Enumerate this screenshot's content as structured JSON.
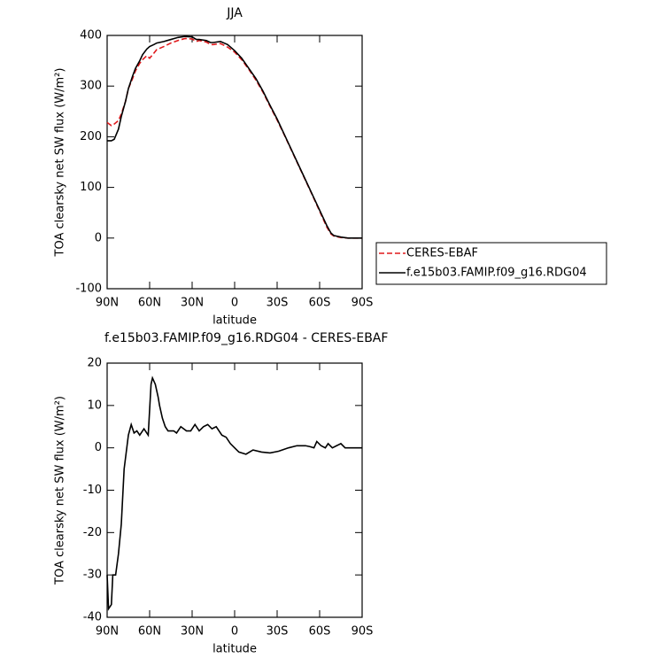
{
  "chart_data": [
    {
      "type": "line",
      "title": "JJA",
      "x_label": "latitude",
      "y_label": "TOA clearsky net SW flux (W/m²)",
      "xlim": [
        90,
        -90
      ],
      "ylim": [
        -100,
        400
      ],
      "xticks": [
        {
          "value": 90,
          "label": "90N"
        },
        {
          "value": 60,
          "label": "60N"
        },
        {
          "value": 30,
          "label": "30N"
        },
        0,
        {
          "value": -30,
          "label": "30S"
        },
        {
          "value": -60,
          "label": "60S"
        },
        {
          "value": -90,
          "label": "90S"
        }
      ],
      "yticks": [
        -100,
        0,
        100,
        200,
        300,
        400
      ],
      "legend": "outside-right",
      "x": [
        90,
        87,
        85,
        82,
        80,
        77,
        75,
        72,
        70,
        67,
        65,
        62,
        60,
        57,
        55,
        50,
        45,
        40,
        35,
        30,
        27,
        25,
        20,
        17,
        15,
        10,
        5,
        0,
        -5,
        -10,
        -15,
        -20,
        -25,
        -30,
        -35,
        -40,
        -45,
        -50,
        -55,
        -60,
        -65,
        -68,
        -70,
        -75,
        -80,
        -85,
        -90
      ],
      "series": [
        {
          "name": "CERES-EBAF",
          "color": "#e0191c",
          "dash": "dashed",
          "values": [
            228,
            222,
            225,
            232,
            245,
            270,
            295,
            315,
            330,
            345,
            352,
            360,
            355,
            365,
            372,
            378,
            385,
            390,
            394,
            393,
            388,
            390,
            387,
            382,
            382,
            384,
            377,
            367,
            352,
            333,
            312,
            288,
            260,
            233,
            204,
            174,
            144,
            114,
            84,
            53,
            22,
            8,
            4,
            1,
            0,
            0,
            0
          ]
        },
        {
          "name": "f.e15b03.FAMIP.f09_g16.RDG04",
          "color": "#000000",
          "dash": "solid",
          "values": [
            192,
            192,
            195,
            215,
            240,
            270,
            295,
            320,
            335,
            350,
            362,
            373,
            378,
            382,
            385,
            388,
            392,
            396,
            398,
            397,
            392,
            392,
            390,
            386,
            386,
            388,
            382,
            370,
            355,
            335,
            315,
            290,
            262,
            235,
            205,
            175,
            145,
            115,
            85,
            55,
            25,
            10,
            5,
            2,
            0,
            0,
            0
          ]
        }
      ]
    },
    {
      "type": "line",
      "title": "f.e15b03.FAMIP.f09_g16.RDG04 - CERES-EBAF",
      "x_label": "latitude",
      "y_label": "TOA clearsky net SW flux (W/m²)",
      "xlim": [
        90,
        -90
      ],
      "ylim": [
        -40,
        20
      ],
      "xticks": [
        {
          "value": 90,
          "label": "90N"
        },
        {
          "value": 60,
          "label": "60N"
        },
        {
          "value": 30,
          "label": "30N"
        },
        0,
        {
          "value": -30,
          "label": "30S"
        },
        {
          "value": -60,
          "label": "60S"
        },
        {
          "value": -90,
          "label": "90S"
        }
      ],
      "yticks": [
        -40,
        -30,
        -20,
        -10,
        0,
        10,
        20
      ],
      "x": [
        90,
        89,
        87,
        86,
        84,
        82,
        80,
        78,
        75,
        73,
        71,
        69,
        67,
        64,
        63,
        61,
        59,
        58,
        56,
        54,
        53,
        51,
        49,
        47,
        43,
        41,
        38,
        34,
        31,
        28,
        25,
        22,
        19,
        16,
        13,
        9,
        6,
        3,
        0,
        -3,
        -8,
        -13,
        -19,
        -25,
        -31,
        -38,
        -44,
        -50,
        -53,
        -56,
        -58,
        -61,
        -64,
        -66,
        -69,
        -72,
        -75,
        -78,
        -81,
        -90
      ],
      "series": [
        {
          "color": "#000000",
          "dash": "solid",
          "values": [
            -30,
            -38,
            -37,
            -30,
            -30,
            -25,
            -18,
            -5,
            3,
            5.5,
            3.5,
            4,
            3,
            4.5,
            4,
            3,
            15,
            16.5,
            15,
            12,
            10,
            7,
            5,
            4,
            4,
            3.5,
            5,
            4,
            4,
            5.5,
            4,
            5,
            5.5,
            4.5,
            5,
            3,
            2.5,
            1,
            0,
            -1,
            -1.5,
            -0.5,
            -1,
            -1.2,
            -0.8,
            0,
            0.5,
            0.5,
            0.3,
            0,
            1.5,
            0.5,
            0,
            1,
            0,
            0.5,
            1,
            0,
            0,
            0
          ]
        }
      ]
    }
  ]
}
